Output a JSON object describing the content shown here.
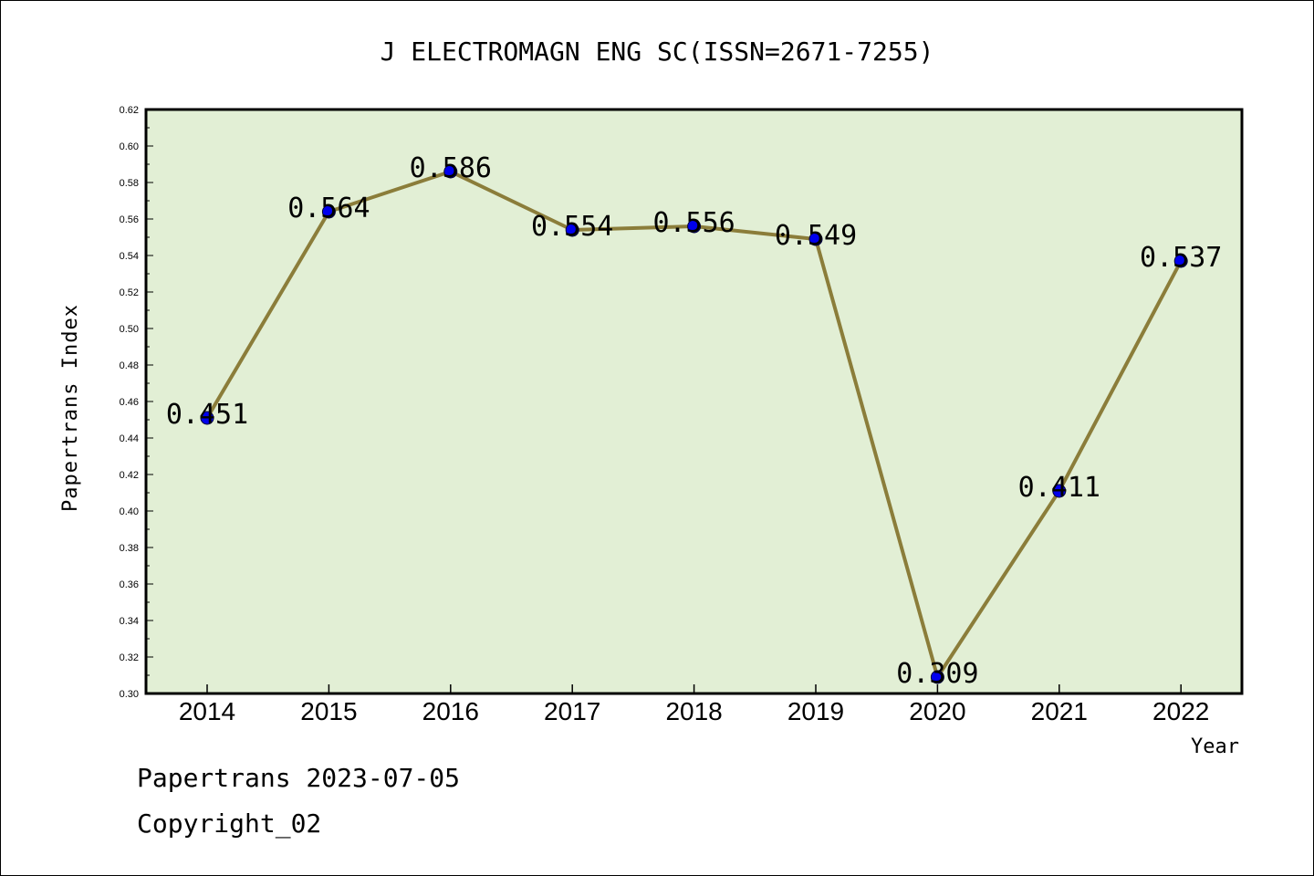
{
  "chart_data": {
    "type": "line",
    "title": "J ELECTROMAGN ENG SC(ISSN=2671-7255)",
    "xlabel": "Year",
    "ylabel": "Papertrans Index",
    "categories": [
      "2014",
      "2015",
      "2016",
      "2017",
      "2018",
      "2019",
      "2020",
      "2021",
      "2022"
    ],
    "values": [
      0.451,
      0.564,
      0.586,
      0.554,
      0.556,
      0.549,
      0.309,
      0.411,
      0.537
    ],
    "data_labels": [
      "0.451",
      "0.564",
      "0.586",
      "0.554",
      "0.556",
      "0.549",
      "0.309",
      "0.411",
      "0.537"
    ],
    "ylim": [
      0.3,
      0.62
    ],
    "yticks": [
      "0.30",
      "0.32",
      "0.34",
      "0.36",
      "0.38",
      "0.40",
      "0.42",
      "0.44",
      "0.46",
      "0.48",
      "0.50",
      "0.52",
      "0.54",
      "0.56",
      "0.58",
      "0.60",
      "0.62"
    ],
    "grid": false,
    "colors": {
      "plot_background": "#e2efd5",
      "line": "#8b7d3a",
      "marker": "#0000ee"
    }
  },
  "footer": {
    "line1": "Papertrans 2023-07-05",
    "line2": "Copyright_02"
  }
}
